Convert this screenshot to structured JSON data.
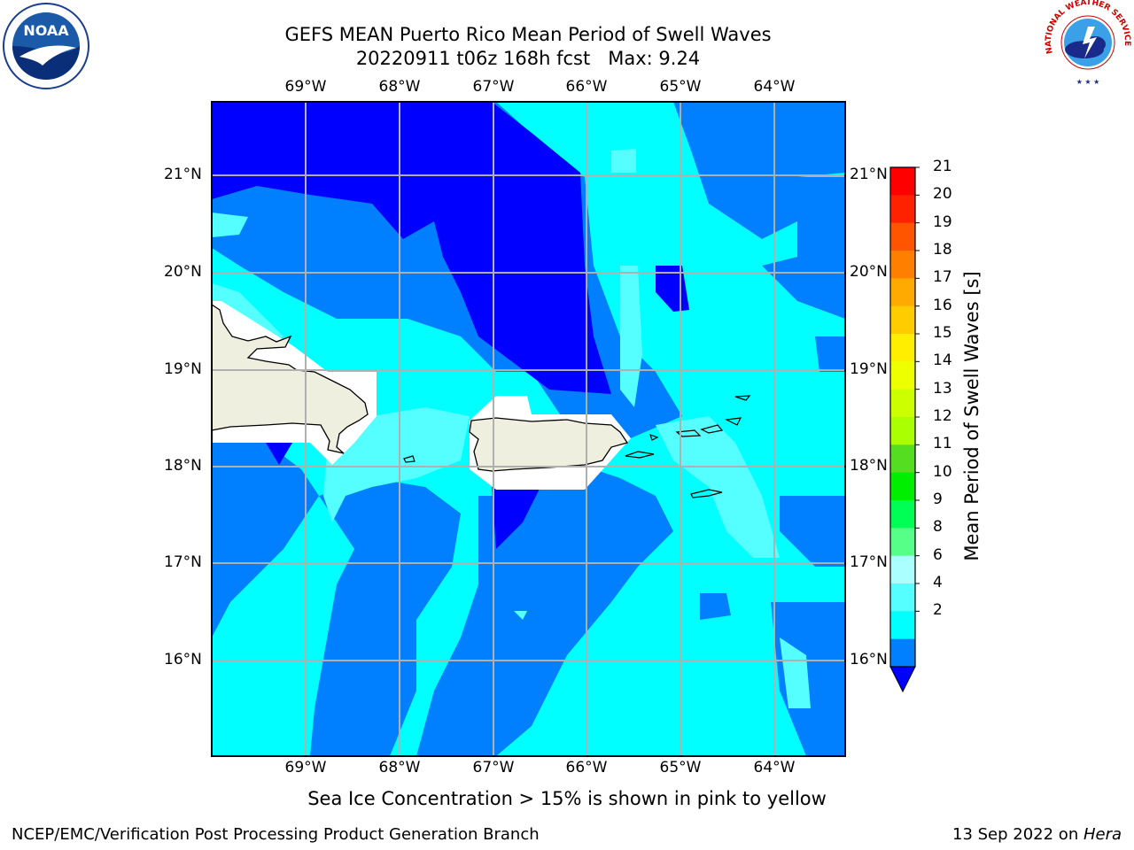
{
  "title": {
    "line1": "GEFS MEAN Puerto Rico Mean Period of Swell Waves",
    "line2": "20220911 t06z 168h fcst   Max: 9.24"
  },
  "map": {
    "projection": "lat-lon",
    "lon_range": [
      -70,
      -63.25
    ],
    "lat_range": [
      15,
      21.75
    ],
    "gridlines": true,
    "lon_ticks": [
      "69°W",
      "68°W",
      "67°W",
      "66°W",
      "65°W",
      "64°W"
    ],
    "lat_ticks": [
      "21°N",
      "20°N",
      "19°N",
      "18°N",
      "17°N",
      "16°N"
    ],
    "land_color": "#efefdf",
    "coastline_color": "#000000",
    "places_shown": [
      "Hispaniola (east)",
      "Puerto Rico",
      "Virgin Islands",
      "St. Croix",
      "Mona Island"
    ]
  },
  "colorbar": {
    "label": "Mean Period of Swell Waves [s]",
    "ticks": [
      "21",
      "20",
      "19",
      "18",
      "17",
      "16",
      "15",
      "14",
      "13",
      "12",
      "11",
      "10",
      "9",
      "8",
      "6",
      "4",
      "2"
    ],
    "colors": [
      "#ff0000",
      "#ff2200",
      "#ff5500",
      "#ff8000",
      "#ffaa00",
      "#ffcc00",
      "#ffee00",
      "#eeff00",
      "#ccff00",
      "#aaff00",
      "#55dd22",
      "#00ee00",
      "#00ff55",
      "#55ff88",
      "#aaffff",
      "#55ffff",
      "#00ffff",
      "#0080ff"
    ],
    "under_color": "#0000ff"
  },
  "note": "Sea Ice Concentration > 15% is shown in pink to yellow",
  "footer": {
    "left": "NCEP/EMC/Verification Post Processing Product Generation Branch",
    "date": "13 Sep 2022 on ",
    "machine": "Hera"
  },
  "logos": {
    "left": {
      "name": "noaa-logo",
      "text": "NOAA"
    },
    "right": {
      "name": "nws-logo",
      "text": "NATIONAL WEATHER SERVICE"
    }
  }
}
